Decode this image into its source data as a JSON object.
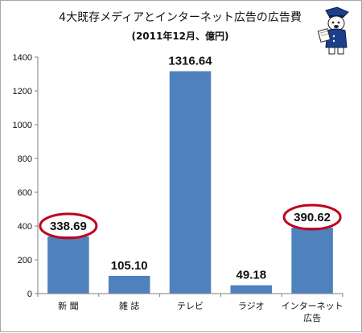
{
  "chart_data": {
    "type": "bar",
    "title": "4大既存メディアとインターネット広告の広告費",
    "subtitle": "(2011年12月、億円)",
    "categories": [
      "新 聞",
      "雑 誌",
      "テレビ",
      "ラジオ",
      [
        "インターネット",
        "広告"
      ]
    ],
    "values": [
      338.69,
      105.1,
      1316.64,
      49.18,
      390.62
    ],
    "data_labels": [
      "338.69",
      "105.10",
      "1316.64",
      "49.18",
      "390.62"
    ],
    "highlighted": [
      0,
      4
    ],
    "ylim": [
      0,
      1400
    ],
    "yticks": [
      0,
      200,
      400,
      600,
      800,
      1000,
      1200,
      1400
    ],
    "xlabel": "",
    "ylabel": "",
    "grid": false,
    "legend": "none",
    "bar_color": "#4f81bd",
    "highlight_color": "#c0001f"
  },
  "mascot": {
    "icon": "mascot-illustration-icon"
  }
}
